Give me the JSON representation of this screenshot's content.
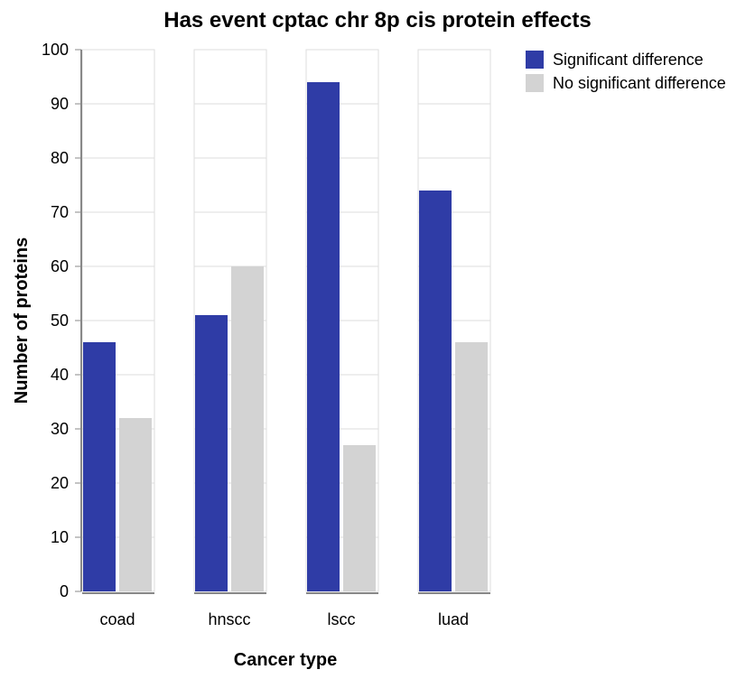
{
  "chart_data": {
    "type": "bar",
    "title": "Has event cptac chr 8p cis protein effects",
    "xlabel": "Cancer type",
    "ylabel": "Number of proteins",
    "categories": [
      "coad",
      "hnscc",
      "lscc",
      "luad"
    ],
    "series": [
      {
        "name": "Significant difference",
        "values": [
          46,
          51,
          94,
          74
        ],
        "color": "#2f3ca6"
      },
      {
        "name": "No significant difference",
        "values": [
          32,
          60,
          27,
          46
        ],
        "color": "#d3d3d3"
      }
    ],
    "ylim": [
      0,
      100
    ],
    "yticks": [
      0,
      10,
      20,
      30,
      40,
      50,
      60,
      70,
      80,
      90,
      100
    ],
    "grid": true,
    "legend_position": "top-right"
  }
}
